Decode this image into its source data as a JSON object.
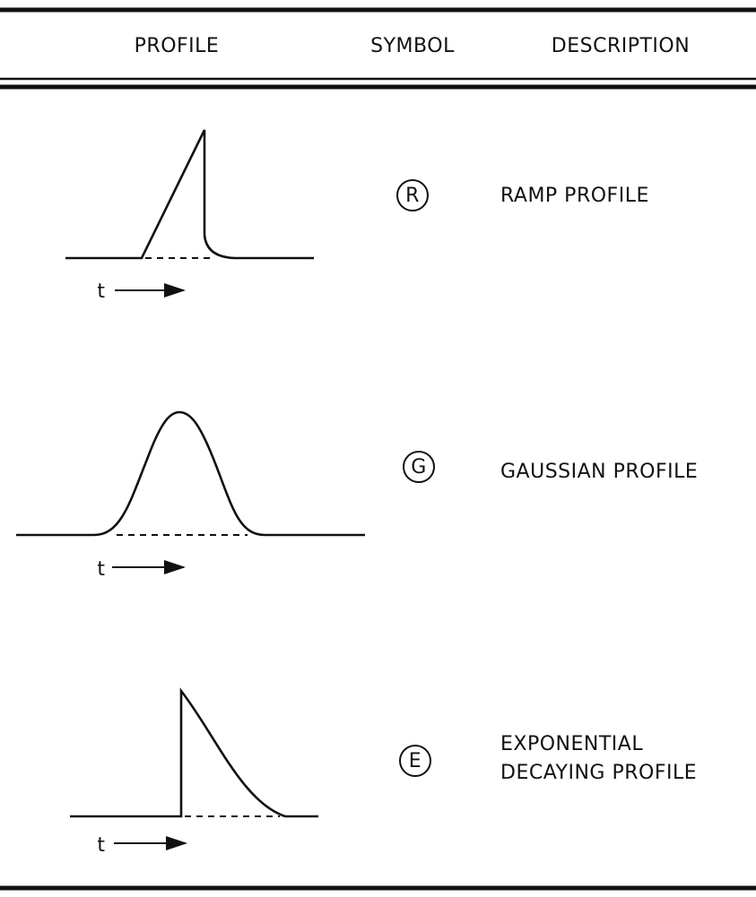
{
  "header": {
    "profile": "PROFILE",
    "symbol": "SYMBOL",
    "description": "DESCRIPTION"
  },
  "rows": [
    {
      "symbol": "R",
      "description": [
        "RAMP PROFILE"
      ],
      "axis_label": "t"
    },
    {
      "symbol": "G",
      "description": [
        "GAUSSIAN PROFILE"
      ],
      "axis_label": "t"
    },
    {
      "symbol": "E",
      "description": [
        "EXPONENTIAL",
        "DECAYING PROFILE"
      ],
      "axis_label": "t"
    }
  ]
}
